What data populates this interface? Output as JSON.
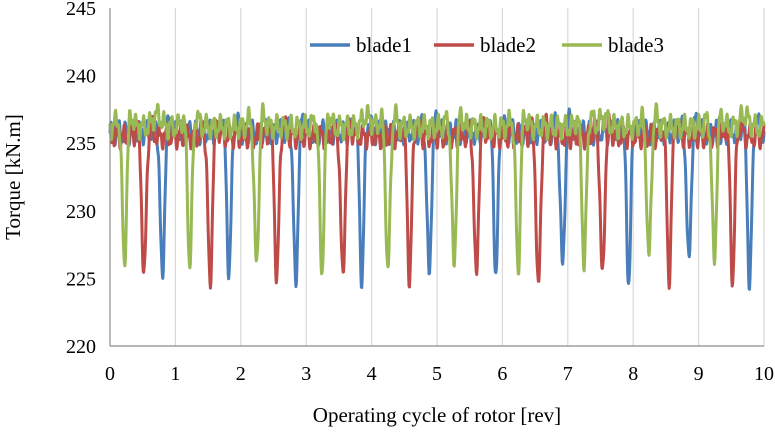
{
  "chart_data": {
    "type": "line",
    "title": "",
    "xlabel": "Operating cycle of rotor [rev]",
    "ylabel": "Torque [kN.m]",
    "xlim": [
      0,
      10
    ],
    "ylim": [
      220,
      245
    ],
    "xticks": [
      0,
      1,
      2,
      3,
      4,
      5,
      6,
      7,
      8,
      9,
      10
    ],
    "yticks": [
      220,
      225,
      230,
      235,
      240,
      245
    ],
    "grid": "vertical",
    "legend_position": "top-right",
    "series": [
      {
        "name": "blade1",
        "color": "#4a7ebb",
        "base": 235.8,
        "ripple": 0.6,
        "dips": [
          [
            0.8,
            225.0
          ],
          [
            1.82,
            225.4
          ],
          [
            2.84,
            224.4
          ],
          [
            3.85,
            225.0
          ],
          [
            4.88,
            225.2
          ],
          [
            5.9,
            225.5
          ],
          [
            6.92,
            225.8
          ],
          [
            7.93,
            224.9
          ],
          [
            8.85,
            226.1
          ],
          [
            9.78,
            224.6
          ]
        ]
      },
      {
        "name": "blade2",
        "color": "#be4b48",
        "base": 235.5,
        "ripple": 0.6,
        "dips": [
          [
            0.52,
            225.0
          ],
          [
            1.53,
            224.5
          ],
          [
            2.55,
            224.9
          ],
          [
            3.56,
            225.0
          ],
          [
            4.58,
            225.0
          ],
          [
            5.6,
            225.0
          ],
          [
            6.55,
            224.1
          ],
          [
            7.53,
            225.0
          ],
          [
            8.55,
            225.1
          ],
          [
            9.52,
            225.0
          ]
        ]
      },
      {
        "name": "blade3",
        "color": "#98b954",
        "base": 236.2,
        "ripple": 0.6,
        "dips": [
          [
            0.22,
            226.2
          ],
          [
            1.22,
            226.1
          ],
          [
            2.24,
            225.8
          ],
          [
            3.24,
            225.6
          ],
          [
            4.25,
            225.5
          ],
          [
            5.26,
            226.0
          ],
          [
            6.24,
            225.6
          ],
          [
            7.25,
            226.0
          ],
          [
            8.24,
            226.4
          ],
          [
            9.24,
            226.3
          ]
        ],
        "peaks": [
          [
            0.72,
            237.7
          ],
          [
            3.92,
            237.6
          ],
          [
            7.55,
            237.5
          ],
          [
            9.7,
            237.7
          ]
        ]
      }
    ]
  }
}
